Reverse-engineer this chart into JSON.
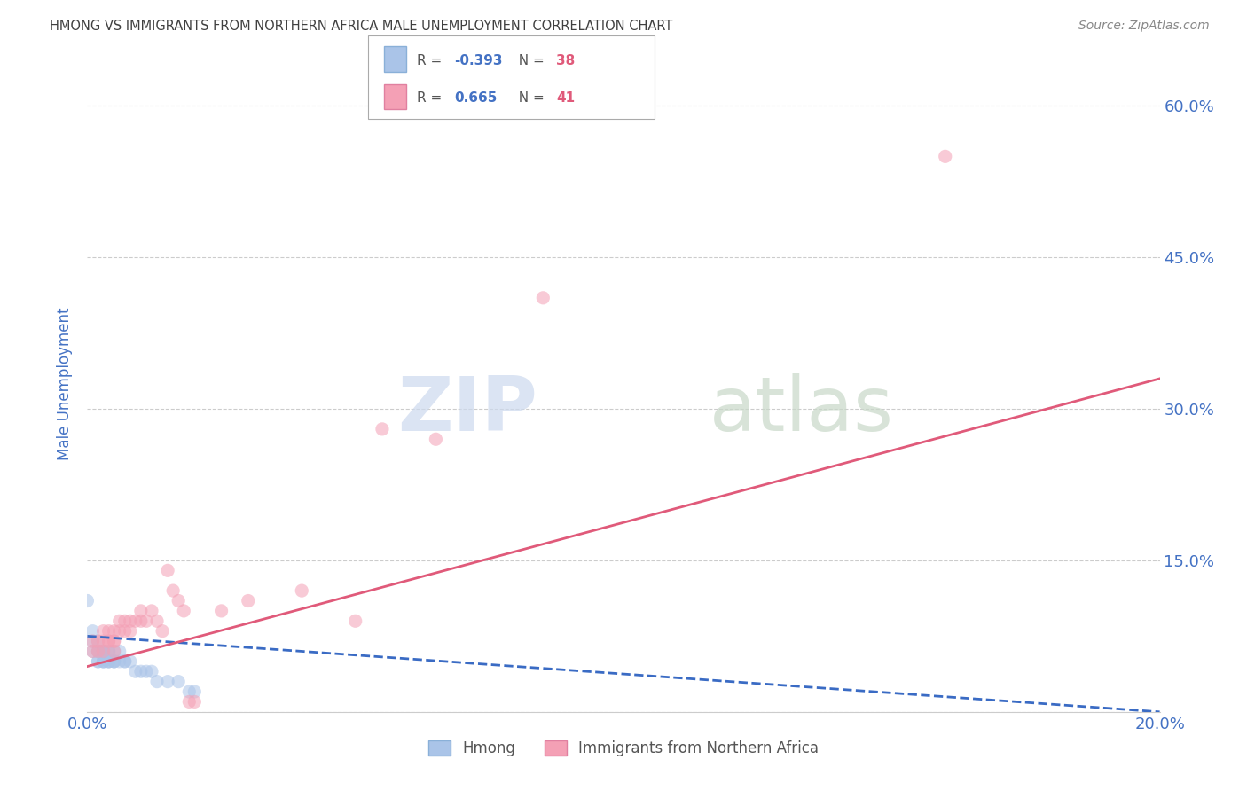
{
  "title": "HMONG VS IMMIGRANTS FROM NORTHERN AFRICA MALE UNEMPLOYMENT CORRELATION CHART",
  "source": "Source: ZipAtlas.com",
  "ylabel": "Male Unemployment",
  "watermark_zip": "ZIP",
  "watermark_atlas": "atlas",
  "legend_r1": "R = -0.393",
  "legend_n1": "N = 38",
  "legend_r2": "R =  0.665",
  "legend_n2": "N = 41",
  "xlim": [
    0.0,
    0.2
  ],
  "ylim": [
    0.0,
    0.65
  ],
  "xtick_vals": [
    0.0,
    0.04,
    0.08,
    0.12,
    0.16,
    0.2
  ],
  "xtick_labels_show": [
    "0.0%",
    "",
    "",
    "",
    "",
    "20.0%"
  ],
  "ytick_vals": [
    0.0,
    0.15,
    0.3,
    0.45,
    0.6
  ],
  "ytick_labels": [
    "",
    "15.0%",
    "30.0%",
    "45.0%",
    "60.0%"
  ],
  "hmong_x": [
    0.001,
    0.001,
    0.001,
    0.002,
    0.002,
    0.002,
    0.002,
    0.002,
    0.003,
    0.003,
    0.003,
    0.003,
    0.003,
    0.003,
    0.004,
    0.004,
    0.004,
    0.004,
    0.004,
    0.005,
    0.005,
    0.005,
    0.005,
    0.006,
    0.006,
    0.007,
    0.007,
    0.008,
    0.009,
    0.01,
    0.011,
    0.012,
    0.013,
    0.015,
    0.017,
    0.019,
    0.02,
    0.0
  ],
  "hmong_y": [
    0.08,
    0.06,
    0.07,
    0.05,
    0.06,
    0.07,
    0.05,
    0.06,
    0.05,
    0.06,
    0.05,
    0.06,
    0.05,
    0.06,
    0.05,
    0.06,
    0.05,
    0.06,
    0.05,
    0.05,
    0.05,
    0.06,
    0.05,
    0.05,
    0.06,
    0.05,
    0.05,
    0.05,
    0.04,
    0.04,
    0.04,
    0.04,
    0.03,
    0.03,
    0.03,
    0.02,
    0.02,
    0.11
  ],
  "africa_x": [
    0.001,
    0.001,
    0.002,
    0.002,
    0.003,
    0.003,
    0.003,
    0.004,
    0.004,
    0.004,
    0.005,
    0.005,
    0.005,
    0.005,
    0.006,
    0.006,
    0.007,
    0.007,
    0.008,
    0.008,
    0.009,
    0.01,
    0.01,
    0.011,
    0.012,
    0.013,
    0.014,
    0.015,
    0.016,
    0.017,
    0.018,
    0.019,
    0.02,
    0.025,
    0.03,
    0.04,
    0.05,
    0.055,
    0.065,
    0.085,
    0.16
  ],
  "africa_y": [
    0.06,
    0.07,
    0.06,
    0.07,
    0.07,
    0.08,
    0.06,
    0.07,
    0.08,
    0.07,
    0.07,
    0.08,
    0.06,
    0.07,
    0.08,
    0.09,
    0.08,
    0.09,
    0.08,
    0.09,
    0.09,
    0.09,
    0.1,
    0.09,
    0.1,
    0.09,
    0.08,
    0.14,
    0.12,
    0.11,
    0.1,
    0.01,
    0.01,
    0.1,
    0.11,
    0.12,
    0.09,
    0.28,
    0.27,
    0.41,
    0.55
  ],
  "hmong_line": [
    -0.5,
    0.075,
    0.2,
    0.0
  ],
  "africa_line": [
    0.0,
    0.045,
    0.2,
    0.33
  ],
  "background_color": "#ffffff",
  "grid_color": "#cccccc",
  "title_color": "#404040",
  "ylabel_color": "#4472c4",
  "tick_label_color": "#4472c4",
  "hmong_dot_color": "#aac4e8",
  "africa_dot_color": "#f4a0b5",
  "hmong_line_color": "#3a6bc4",
  "africa_line_color": "#e05a7a",
  "dot_size": 120,
  "dot_alpha": 0.55,
  "line_width": 2.0
}
